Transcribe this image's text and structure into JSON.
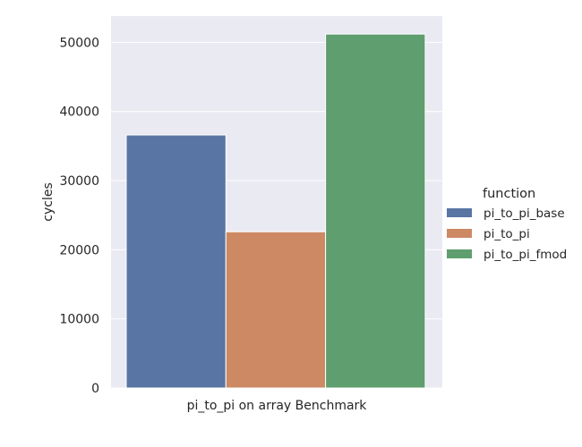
{
  "chart_data": {
    "type": "bar",
    "title": "",
    "xlabel": "",
    "ylabel": "cycles",
    "categories": [
      "pi_to_pi on array Benchmark"
    ],
    "series": [
      {
        "name": "pi_to_pi_base",
        "values": [
          36600
        ],
        "color": "#5875a4"
      },
      {
        "name": "pi_to_pi",
        "values": [
          22600
        ],
        "color": "#cc8963"
      },
      {
        "name": "pi_to_pi_fmod",
        "values": [
          51200
        ],
        "color": "#5f9e6e"
      }
    ],
    "ylim": [
      0,
      53800
    ],
    "yticks": [
      "0",
      "10000",
      "20000",
      "30000",
      "40000",
      "50000"
    ],
    "grid": true,
    "background": "#eaeaf2",
    "legend": {
      "title": "function",
      "placement": "right"
    }
  }
}
